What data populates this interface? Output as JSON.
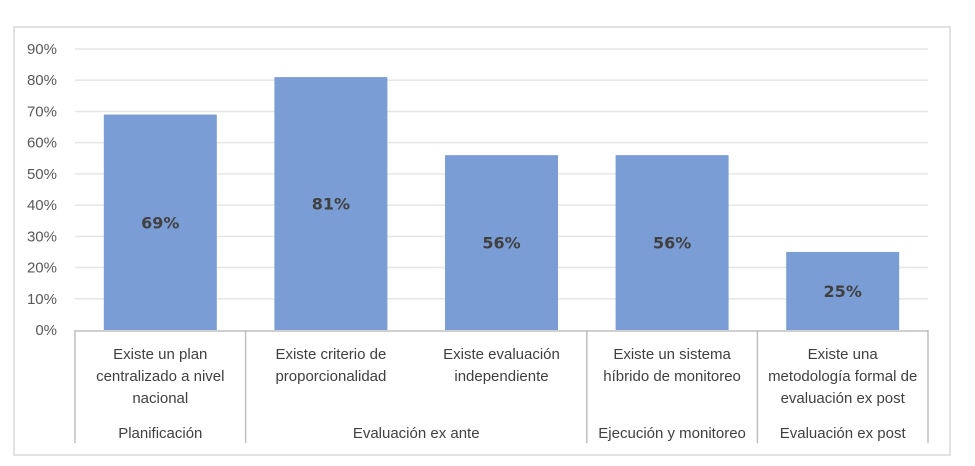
{
  "chart_data": {
    "type": "bar",
    "title": "",
    "xlabel": "",
    "ylabel": "",
    "ylim": [
      0,
      90
    ],
    "yticks": [
      "0%",
      "10%",
      "20%",
      "30%",
      "40%",
      "50%",
      "60%",
      "70%",
      "80%",
      "90%"
    ],
    "grid": true,
    "bar_color": "#7B9DD5",
    "categories": [
      [
        "Existe un plan",
        "centralizado a nivel",
        "nacional"
      ],
      [
        "Existe criterio de",
        "proporcionalidad"
      ],
      [
        "Existe evaluación",
        "independiente"
      ],
      [
        "Existe un sistema",
        "híbrido de monitoreo"
      ],
      [
        "Existe una",
        "metodología formal de",
        "evaluación ex post"
      ]
    ],
    "groups": [
      {
        "label": "Planificación",
        "count": 1
      },
      {
        "label": "Evaluación ex ante",
        "count": 2
      },
      {
        "label": "Ejecución y monitoreo",
        "count": 1
      },
      {
        "label": "Evaluación ex post",
        "count": 1
      }
    ],
    "values": [
      69,
      81,
      56,
      56,
      25
    ],
    "data_labels": [
      "69%",
      "81%",
      "56%",
      "56%",
      "25%"
    ]
  }
}
